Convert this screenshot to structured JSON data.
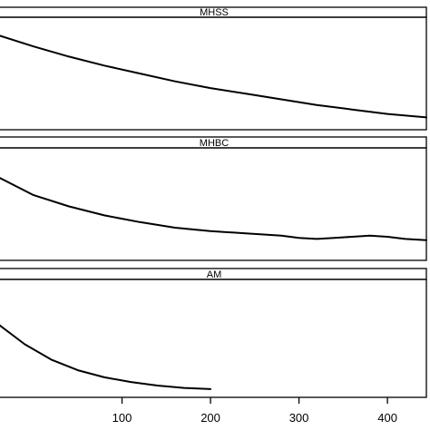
{
  "chart_data": {
    "type": "line",
    "layout": "faceted-stacked",
    "xlim": [
      -40,
      444
    ],
    "x_ticks": [
      100,
      200,
      300,
      400
    ],
    "x_tick_labels": [
      "100",
      "200",
      "300",
      "400"
    ],
    "ylim": [
      0,
      1
    ],
    "grid": false,
    "legend": "none",
    "line_color": "#000000",
    "panels": [
      {
        "name": "MHSS",
        "series": [
          {
            "x": [
              -40,
              0,
              40,
              80,
              120,
              160,
              200,
              240,
              280,
              320,
              360,
              400,
              444
            ],
            "y": [
              0.84,
              0.74,
              0.65,
              0.57,
              0.5,
              0.43,
              0.37,
              0.32,
              0.27,
              0.22,
              0.18,
              0.14,
              0.11
            ]
          }
        ]
      },
      {
        "name": "MHBC",
        "series": [
          {
            "x": [
              -40,
              0,
              40,
              80,
              120,
              160,
              200,
              240,
              280,
              300,
              320,
              340,
              360,
              380,
              400,
              420,
              444
            ],
            "y": [
              0.74,
              0.58,
              0.48,
              0.4,
              0.34,
              0.29,
              0.26,
              0.24,
              0.22,
              0.2,
              0.19,
              0.2,
              0.21,
              0.22,
              0.21,
              0.19,
              0.18
            ]
          }
        ]
      },
      {
        "name": "AM",
        "series": [
          {
            "x": [
              -40,
              -10,
              20,
              50,
              80,
              110,
              140,
              170,
              200
            ],
            "y": [
              0.62,
              0.45,
              0.32,
              0.23,
              0.17,
              0.13,
              0.1,
              0.08,
              0.07
            ]
          }
        ]
      }
    ]
  }
}
